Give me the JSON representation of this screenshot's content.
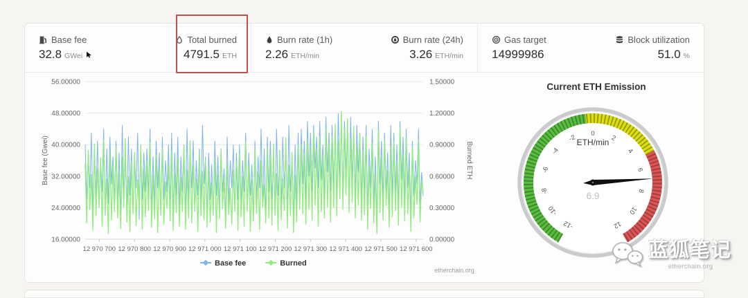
{
  "stats": {
    "groups": [
      {
        "items": [
          {
            "icon": "gas-pump-icon",
            "label": "Base fee",
            "value": "32.8",
            "unit": "GWei",
            "has_cursor": true
          },
          {
            "icon": "droplet-outline-icon",
            "label": "Total burned",
            "value": "4791.5",
            "unit": "ETH",
            "annotated": true
          }
        ]
      },
      {
        "items": [
          {
            "icon": "droplet-icon",
            "label": "Burn rate (1h)",
            "value": "2.26",
            "unit": "ETH/min"
          },
          {
            "icon": "flame-ring-icon",
            "label": "Burn rate (24h)",
            "value": "3.26",
            "unit": "ETH/min"
          }
        ]
      },
      {
        "items": [
          {
            "icon": "target-icon",
            "label": "Gas target",
            "value": "14999986",
            "unit": ""
          },
          {
            "icon": "database-icon",
            "label": "Block utilization",
            "value": "51.0",
            "unit": "%"
          }
        ]
      }
    ]
  },
  "annotation": {
    "color": "#c0504d"
  },
  "chart_data": {
    "type": "line",
    "x_start": 12970660,
    "x_end": 12971620,
    "x_tick_values": [
      12970700,
      12970800,
      12970900,
      12971000,
      12971100,
      12971200,
      12971300,
      12971400,
      12971500,
      12971600
    ],
    "x_ticks": [
      "12 970 700",
      "12 970 800",
      "12 970 900",
      "12 971 000",
      "12 971 100",
      "12 971 200",
      "12 971 300",
      "12 971 400",
      "12 971 500",
      "12 971 600"
    ],
    "y_left": {
      "label": "Base fee (Gwei)",
      "min": 16,
      "max": 56,
      "ticks": [
        "16.00000",
        "24.00000",
        "32.00000",
        "40.00000",
        "48.00000",
        "56.00000"
      ]
    },
    "y_right": {
      "label": "Burned ETH",
      "min": 0,
      "max": 1.5,
      "ticks": [
        "0.00000",
        "0.30000",
        "0.60000",
        "0.90000",
        "1.20000",
        "1.50000"
      ]
    },
    "legend": [
      {
        "label": "Base fee",
        "color": "#7cb5ec"
      },
      {
        "label": "Burned",
        "color": "#90ed7d"
      }
    ],
    "credit": "etherchain.org",
    "grid": true,
    "series": [
      {
        "name": "Base fee",
        "axis": "left",
        "color": "#7cb5ec",
        "values": [
          40,
          26,
          37,
          29,
          43,
          23,
          38,
          27,
          41,
          24,
          36,
          28,
          44,
          22,
          39,
          25,
          42,
          30,
          37,
          26,
          41,
          25,
          38,
          22,
          45,
          28,
          36,
          24,
          42,
          27,
          39,
          23,
          37,
          29,
          43,
          21,
          40,
          26,
          38,
          28,
          39,
          27,
          44,
          23,
          37,
          25,
          41,
          29,
          38,
          22,
          42,
          26,
          36,
          28,
          40,
          24,
          43,
          21,
          38,
          27,
          42,
          24,
          37,
          28,
          40,
          22,
          44,
          26,
          38,
          29,
          41,
          23,
          36,
          27,
          39,
          25,
          45,
          30,
          37,
          22,
          38,
          26,
          35,
          22,
          41,
          27,
          37,
          24,
          39,
          28,
          34,
          21,
          42,
          25,
          36,
          29,
          40,
          23,
          38,
          26,
          40,
          25,
          36,
          28,
          43,
          23,
          38,
          27,
          35,
          22,
          41,
          26,
          37,
          29,
          44,
          24,
          39,
          21,
          42,
          28,
          41,
          26,
          38,
          22,
          44,
          27,
          36,
          24,
          42,
          29,
          39,
          23,
          45,
          28,
          37,
          21,
          40,
          25,
          43,
          27,
          44,
          30,
          41,
          26,
          46,
          32,
          43,
          28,
          45,
          34,
          42,
          29,
          46,
          31,
          40,
          27,
          47,
          33,
          43,
          28,
          45,
          30,
          43,
          26,
          48,
          32,
          44,
          28,
          46,
          34,
          42,
          25,
          47,
          31,
          44,
          27,
          45,
          33,
          43,
          26,
          42,
          27,
          45,
          23,
          39,
          29,
          44,
          25,
          37,
          21,
          46,
          30,
          41,
          26,
          43,
          28,
          38,
          22,
          45,
          27,
          43,
          28,
          40,
          24,
          46,
          31,
          42,
          26,
          44,
          29,
          38,
          22,
          41,
          27,
          36,
          30,
          44,
          25,
          33,
          27
        ]
      },
      {
        "name": "Burned",
        "axis": "right",
        "color": "#90ed7d",
        "values": [
          0.72,
          0.15,
          0.85,
          0.28,
          0.62,
          0.08,
          0.91,
          0.22,
          0.68,
          0.31,
          0.78,
          0.12,
          0.95,
          0.25,
          0.58,
          0.05,
          0.82,
          0.18,
          0.7,
          0.26,
          0.88,
          0.2,
          0.64,
          0.1,
          0.79,
          0.3,
          0.96,
          0.16,
          0.6,
          0.07,
          0.74,
          0.24,
          0.83,
          0.13,
          0.57,
          0.28,
          0.9,
          0.09,
          0.67,
          0.21,
          0.75,
          0.27,
          0.92,
          0.11,
          0.61,
          0.19,
          0.8,
          0.06,
          0.69,
          0.23,
          0.87,
          0.14,
          0.55,
          0.29,
          0.73,
          0.17,
          0.84,
          0.08,
          0.63,
          0.25,
          0.78,
          0.12,
          0.59,
          0.26,
          0.89,
          0.09,
          0.66,
          0.2,
          0.94,
          0.15,
          0.71,
          0.28,
          0.58,
          0.07,
          0.81,
          0.22,
          0.65,
          0.18,
          0.76,
          0.11,
          0.68,
          0.16,
          0.54,
          0.25,
          0.77,
          0.06,
          0.62,
          0.19,
          0.85,
          0.29,
          0.58,
          0.1,
          0.72,
          0.23,
          0.49,
          0.14,
          0.66,
          0.27,
          0.74,
          0.08,
          0.82,
          0.21,
          0.6,
          0.12,
          0.93,
          0.26,
          0.7,
          0.07,
          0.57,
          0.17,
          0.86,
          0.24,
          0.64,
          0.09,
          0.75,
          0.3,
          0.52,
          0.15,
          0.88,
          0.2,
          0.79,
          0.13,
          0.91,
          0.24,
          0.63,
          0.08,
          0.85,
          0.18,
          0.58,
          0.27,
          0.97,
          0.1,
          0.71,
          0.22,
          0.83,
          0.06,
          0.61,
          0.16,
          0.9,
          0.28,
          0.9,
          0.24,
          0.82,
          0.14,
          0.95,
          0.28,
          0.88,
          0.18,
          1.02,
          0.32,
          0.86,
          0.12,
          0.98,
          0.26,
          0.8,
          0.2,
          1.05,
          0.3,
          0.92,
          0.16,
          0.98,
          0.3,
          1.1,
          0.22,
          0.95,
          0.38,
          1.22,
          0.28,
          1.05,
          0.42,
          1.15,
          0.25,
          0.96,
          0.35,
          1.08,
          0.2,
          0.9,
          0.32,
          1.0,
          0.18,
          0.84,
          0.23,
          0.99,
          0.09,
          0.7,
          0.29,
          0.92,
          0.15,
          0.62,
          0.05,
          1.04,
          0.25,
          0.78,
          0.18,
          0.95,
          0.32,
          0.66,
          0.11,
          0.89,
          0.21,
          0.93,
          0.27,
          0.73,
          0.13,
          1.06,
          0.3,
          0.81,
          0.17,
          0.97,
          0.24,
          0.69,
          0.07,
          0.88,
          0.2,
          0.6,
          0.33,
          0.95,
          0.16,
          0.55,
          0.45
        ]
      }
    ]
  },
  "gauge": {
    "title": "Current ETH Emission",
    "unit": "ETH/min",
    "value": 6.9,
    "value_display": "6.9",
    "min": -12,
    "max": 12,
    "tick_labels": [
      -12,
      -10,
      -8,
      -6,
      -4,
      -2,
      0,
      2,
      4,
      6,
      8,
      10,
      12
    ],
    "bands": [
      {
        "from": -12,
        "to": -0.5,
        "color": "#55BF3B"
      },
      {
        "from": -0.5,
        "to": 5,
        "color": "#DDDF0D"
      },
      {
        "from": 5,
        "to": 12,
        "color": "#DF5353"
      }
    ]
  },
  "watermark": {
    "title": "蓝狐笔记",
    "subtitle": "etherchain.org",
    "icon": "wechat-icon"
  },
  "credit": "etherchain.org"
}
